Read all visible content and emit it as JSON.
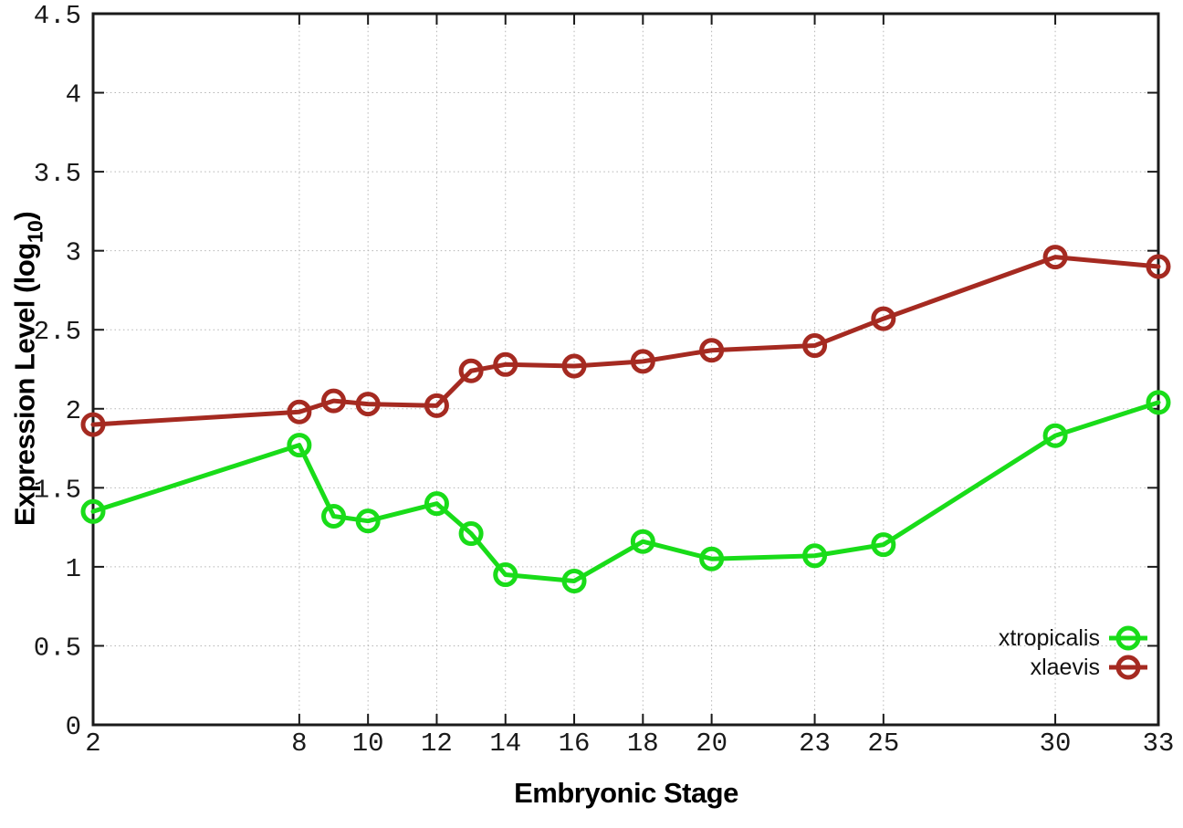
{
  "figure": {
    "background": "#ffffff",
    "border_color": "#1a1a1a",
    "grid_color": "#b5b5b5"
  },
  "chart_data": {
    "type": "line",
    "title": "",
    "xlabel": "Embryonic Stage",
    "ylabel": "Expression Level (log10)",
    "ylabel_parts": {
      "main": "Expression Level (log",
      "sub": "10",
      "end": ")"
    },
    "xlim": [
      2,
      33
    ],
    "ylim": [
      0,
      4.5
    ],
    "grid": true,
    "legend_position": "bottom-right",
    "x_ticks": [
      2,
      8,
      10,
      12,
      14,
      16,
      18,
      20,
      23,
      25,
      30,
      33
    ],
    "x_tick_labels": [
      "2",
      "8",
      "10",
      "12",
      "14",
      "16",
      "18",
      "20",
      "23",
      "25",
      "30",
      "33"
    ],
    "y_ticks": [
      0,
      0.5,
      1,
      1.5,
      2,
      2.5,
      3,
      3.5,
      4,
      4.5
    ],
    "y_tick_labels": [
      "0",
      "0.5",
      "1",
      "1.5",
      "2",
      "2.5",
      "3",
      "3.5",
      "4",
      "4.5"
    ],
    "x": [
      2,
      8,
      9,
      10,
      12,
      13,
      14,
      16,
      18,
      20,
      23,
      25,
      30,
      33
    ],
    "series": [
      {
        "name": "xtropicalis",
        "color": "#19dc19",
        "values": [
          1.35,
          1.77,
          1.32,
          1.29,
          1.4,
          1.21,
          0.95,
          0.91,
          1.16,
          1.05,
          1.07,
          1.14,
          1.83,
          2.04
        ]
      },
      {
        "name": "xlaevis",
        "color": "#a52a21",
        "values": [
          1.9,
          1.98,
          2.05,
          2.03,
          2.02,
          2.24,
          2.28,
          2.27,
          2.3,
          2.37,
          2.4,
          2.57,
          2.96,
          2.9
        ]
      }
    ]
  }
}
